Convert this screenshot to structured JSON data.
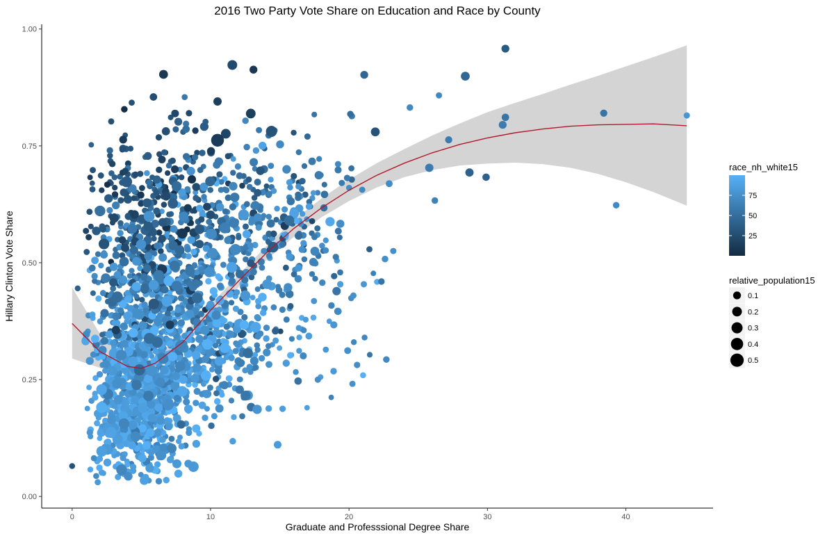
{
  "chart_data": {
    "type": "scatter",
    "title": "2016 Two Party Vote Share on Education and Race by County",
    "xlabel": "Graduate and Professsional Degree Share",
    "ylabel": "Hillary Clinton Vote Share",
    "xlim": [
      -2.2,
      46.3
    ],
    "ylim": [
      -0.025,
      1.01
    ],
    "x_ticks": [
      0,
      10,
      20,
      30,
      40
    ],
    "y_ticks": [
      0.0,
      0.25,
      0.5,
      0.75,
      1.0
    ],
    "x_tick_labels": [
      "0",
      "10",
      "20",
      "30",
      "40"
    ],
    "y_tick_labels": [
      "0.00",
      "0.25",
      "0.50",
      "0.75",
      "1.00"
    ],
    "grid": false,
    "color_variable": "race_nh_white15",
    "size_variable": "relative_population15",
    "colors": {
      "low": "#132b43",
      "high": "#56b1f7",
      "smooth_line": "#b2182b",
      "ribbon": "#d4d4d4"
    },
    "color_legend": {
      "title": "race_nh_white15",
      "breaks": [
        25,
        50,
        75
      ],
      "labels": [
        "25",
        "50",
        "75"
      ],
      "range": [
        0,
        100
      ],
      "placement": "right"
    },
    "size_legend": {
      "title": "relative_population15",
      "breaks": [
        0.1,
        0.2,
        0.3,
        0.4,
        0.5
      ],
      "labels": [
        "0.1",
        "0.2",
        "0.3",
        "0.4",
        "0.5"
      ],
      "placement": "right"
    },
    "smooth": {
      "x": [
        0.0,
        2.0,
        4.0,
        5.0,
        6.0,
        8.0,
        10.0,
        12.0,
        14.0,
        16.0,
        18.0,
        20.0,
        22.0,
        24.0,
        26.0,
        28.0,
        30.0,
        32.0,
        34.0,
        36.0,
        38.0,
        40.0,
        42.0,
        44.4
      ],
      "y": [
        0.37,
        0.31,
        0.278,
        0.274,
        0.285,
        0.33,
        0.398,
        0.46,
        0.52,
        0.573,
        0.617,
        0.655,
        0.687,
        0.713,
        0.735,
        0.753,
        0.767,
        0.778,
        0.786,
        0.792,
        0.795,
        0.796,
        0.797,
        0.793
      ],
      "lower": [
        0.295,
        0.275,
        0.265,
        0.263,
        0.27,
        0.315,
        0.385,
        0.447,
        0.505,
        0.555,
        0.597,
        0.632,
        0.661,
        0.683,
        0.698,
        0.708,
        0.712,
        0.714,
        0.711,
        0.703,
        0.69,
        0.672,
        0.651,
        0.622
      ],
      "upper": [
        0.447,
        0.348,
        0.291,
        0.285,
        0.3,
        0.345,
        0.411,
        0.473,
        0.535,
        0.591,
        0.637,
        0.678,
        0.713,
        0.743,
        0.772,
        0.798,
        0.822,
        0.842,
        0.861,
        0.881,
        0.9,
        0.92,
        0.94,
        0.965
      ]
    },
    "highlight_points": [
      {
        "x": 0.0,
        "y": 0.065,
        "w": 30,
        "s": 0.03
      },
      {
        "x": 0.4,
        "y": 0.445,
        "w": 40,
        "s": 0.03
      },
      {
        "x": 1.0,
        "y": 0.568,
        "w": 20,
        "s": 0.04
      },
      {
        "x": 6.6,
        "y": 0.903,
        "w": 10,
        "s": 0.15
      },
      {
        "x": 13.1,
        "y": 0.913,
        "w": 10,
        "s": 0.1
      },
      {
        "x": 10.5,
        "y": 0.845,
        "w": 15,
        "s": 0.12
      },
      {
        "x": 10.5,
        "y": 0.762,
        "w": 12,
        "s": 0.45
      },
      {
        "x": 11.1,
        "y": 0.776,
        "w": 20,
        "s": 0.2
      },
      {
        "x": 14.4,
        "y": 0.781,
        "w": 30,
        "s": 0.3
      },
      {
        "x": 12.9,
        "y": 0.819,
        "w": 15,
        "s": 0.2
      },
      {
        "x": 21.1,
        "y": 0.902,
        "w": 45,
        "s": 0.1
      },
      {
        "x": 28.4,
        "y": 0.899,
        "w": 45,
        "s": 0.15
      },
      {
        "x": 31.3,
        "y": 0.958,
        "w": 35,
        "s": 0.1
      },
      {
        "x": 26.5,
        "y": 0.858,
        "w": 70,
        "s": 0.04
      },
      {
        "x": 24.4,
        "y": 0.832,
        "w": 70,
        "s": 0.05
      },
      {
        "x": 38.4,
        "y": 0.82,
        "w": 55,
        "s": 0.07
      },
      {
        "x": 44.4,
        "y": 0.815,
        "w": 80,
        "s": 0.04
      },
      {
        "x": 31.3,
        "y": 0.811,
        "w": 55,
        "s": 0.08
      },
      {
        "x": 31.1,
        "y": 0.795,
        "w": 60,
        "s": 0.1
      },
      {
        "x": 21.9,
        "y": 0.78,
        "w": 30,
        "s": 0.15
      },
      {
        "x": 27.2,
        "y": 0.763,
        "w": 60,
        "s": 0.07
      },
      {
        "x": 25.8,
        "y": 0.703,
        "w": 60,
        "s": 0.12
      },
      {
        "x": 28.7,
        "y": 0.693,
        "w": 40,
        "s": 0.12
      },
      {
        "x": 29.9,
        "y": 0.683,
        "w": 40,
        "s": 0.08
      },
      {
        "x": 26.2,
        "y": 0.633,
        "w": 65,
        "s": 0.05
      },
      {
        "x": 39.3,
        "y": 0.623,
        "w": 70,
        "s": 0.05
      },
      {
        "x": 22.7,
        "y": 0.293,
        "w": 70,
        "s": 0.05
      },
      {
        "x": 19.9,
        "y": 0.312,
        "w": 75,
        "s": 0.06
      },
      {
        "x": 19.2,
        "y": 0.396,
        "w": 70,
        "s": 0.08
      },
      {
        "x": 22.6,
        "y": 0.508,
        "w": 75,
        "s": 0.05
      },
      {
        "x": 23.2,
        "y": 0.525,
        "w": 75,
        "s": 0.04
      },
      {
        "x": 6.8,
        "y": 0.035,
        "w": 90,
        "s": 0.05
      },
      {
        "x": 4.4,
        "y": 0.055,
        "w": 85,
        "s": 0.05
      },
      {
        "x": 11.6,
        "y": 0.118,
        "w": 85,
        "s": 0.05
      },
      {
        "x": 14.2,
        "y": 0.188,
        "w": 85,
        "s": 0.05
      },
      {
        "x": 17.1,
        "y": 0.343,
        "w": 85,
        "s": 0.06
      },
      {
        "x": 18.9,
        "y": 0.367,
        "w": 80,
        "s": 0.07
      }
    ],
    "cloud": [
      {
        "x_mean": 5.0,
        "x_sd": 1.6,
        "y_mean": 0.22,
        "y_sd": 0.08,
        "white_mean": 84,
        "white_sd": 10,
        "n": 750
      },
      {
        "x_mean": 8.5,
        "x_sd": 2.8,
        "y_mean": 0.34,
        "y_sd": 0.09,
        "white_mean": 78,
        "white_sd": 14,
        "n": 520
      },
      {
        "x_mean": 5.5,
        "x_sd": 2.2,
        "y_mean": 0.43,
        "y_sd": 0.09,
        "white_mean": 58,
        "white_sd": 18,
        "n": 330
      },
      {
        "x_mean": 5.6,
        "x_sd": 2.6,
        "y_mean": 0.62,
        "y_sd": 0.09,
        "white_mean": 28,
        "white_sd": 12,
        "n": 250
      },
      {
        "x_mean": 11.5,
        "x_sd": 3.3,
        "y_mean": 0.55,
        "y_sd": 0.09,
        "white_mean": 58,
        "white_sd": 20,
        "n": 300
      },
      {
        "x_mean": 15.5,
        "x_sd": 3.5,
        "y_mean": 0.64,
        "y_sd": 0.1,
        "white_mean": 62,
        "white_sd": 18,
        "n": 110
      },
      {
        "x_mean": 16.5,
        "x_sd": 3.0,
        "y_mean": 0.4,
        "y_sd": 0.1,
        "white_mean": 78,
        "white_sd": 12,
        "n": 70
      },
      {
        "x_mean": 3.3,
        "x_sd": 1.2,
        "y_mean": 0.15,
        "y_sd": 0.05,
        "white_mean": 88,
        "white_sd": 7,
        "n": 150
      }
    ]
  }
}
